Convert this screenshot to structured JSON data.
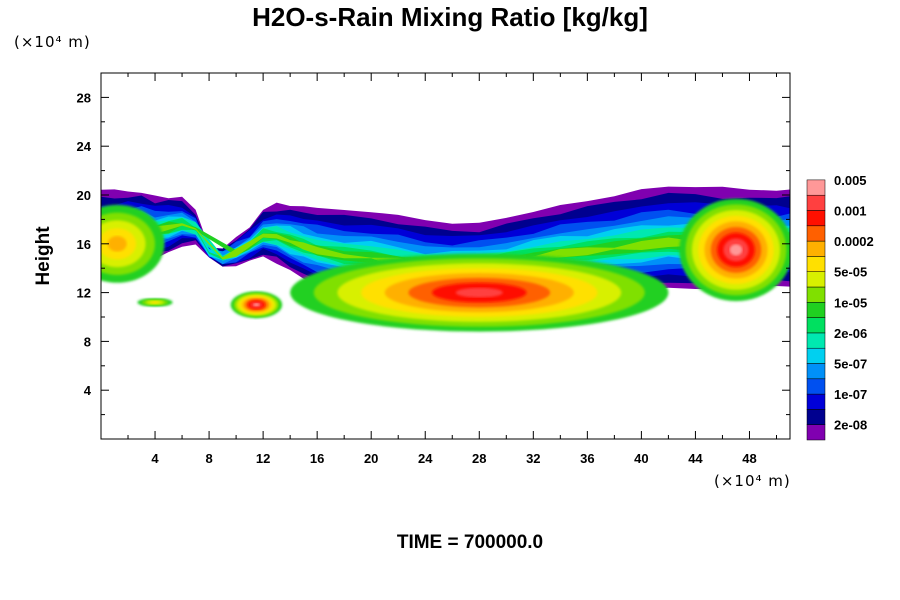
{
  "chart_data": {
    "type": "heatmap",
    "title": "H2O-s-Rain Mixing Ratio [kg/kg]",
    "xlabel": "",
    "ylabel": "Height",
    "x_unit": "(×10⁴ m)",
    "y_unit": "(×10⁴ m)",
    "xlim": [
      0,
      51
    ],
    "ylim": [
      0,
      30
    ],
    "x_ticks": [
      4,
      8,
      12,
      16,
      20,
      24,
      28,
      32,
      36,
      40,
      44,
      48
    ],
    "y_ticks": [
      4,
      8,
      12,
      16,
      20,
      24,
      28
    ],
    "colorbar": {
      "colors": [
        "#8000b0",
        "#00008f",
        "#0000d8",
        "#0050f0",
        "#0090f8",
        "#00d0f0",
        "#00e8b0",
        "#00e060",
        "#20d020",
        "#80e000",
        "#d8f000",
        "#ffe000",
        "#ffb000",
        "#ff6000",
        "#ff1000",
        "#ff4040",
        "#ff9898"
      ],
      "labels": [
        "2e-08",
        "1e-07",
        "5e-07",
        "2e-06",
        "1e-05",
        "5e-05",
        "0.0002",
        "0.001",
        "0.005"
      ]
    },
    "features": [
      {
        "cx": 47,
        "cy": 15.5,
        "rx": 4.2,
        "ry": 4.2,
        "level": 15
      },
      {
        "cx": 28,
        "cy": 12,
        "rx": 14,
        "ry": 3.2,
        "level": 14
      },
      {
        "cx": 11.5,
        "cy": 11,
        "rx": 1.9,
        "ry": 1.1,
        "level": 15
      },
      {
        "cx": 1.2,
        "cy": 16,
        "rx": 3.5,
        "ry": 3.2,
        "level": 11
      },
      {
        "cx": 4,
        "cy": 11.2,
        "rx": 1.3,
        "ry": 0.35,
        "level": 10
      }
    ]
  },
  "time_label": "TIME = 700000.0"
}
